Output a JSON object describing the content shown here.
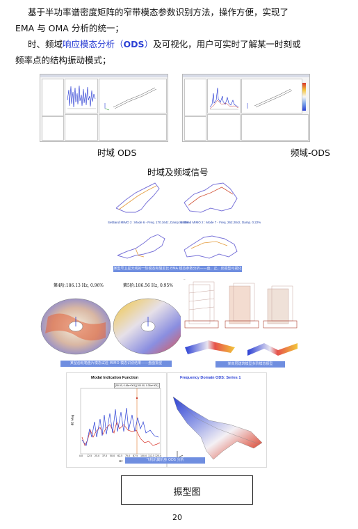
{
  "paragraphs": {
    "p1_line1": "基于半功率谱密度矩阵的窄带模态参数识别方法，操作方便，实现了",
    "p1_line2": "EMA 与 OMA 分析的统一；",
    "p2_prefix": "时、频域",
    "p2_highlight": "响应模态分析",
    "p2_open": "（",
    "p2_ods": "ODS",
    "p2_close": "）",
    "p2_rest": "及可视化，用户可实时了解某一时刻或",
    "p2_line2": "频率点的结构振动模式；"
  },
  "captions": {
    "time_ods": "时域 ODS",
    "freq_ods": "频域-ODS",
    "section_title": "时域及频域信号",
    "mode_shape": "振型图"
  },
  "figures": {
    "mode6_label": "SetBand MIMO 2 : Mode 6 - Freq. 170.164z, Damp. 0.10%",
    "mode7_label": "SetBand MIMO 2 : Mode 7 - Freq. 262.284z, Damp. 0.22%",
    "antenna_band": "某型号卫星天线的一阶模态和阻尼比 EMA 模态参数分析——盘、正、反振型可视化",
    "disk_mode4": "第4阶:186.13 Hz, 0.96%",
    "disk_mode5": "第5阶:186.56 Hz, 0.95%",
    "disk_band": "某型齿轮箱盘片模态试验 MIMO 模态识别结果——盘面振型",
    "building_band": "某高层建筑模型多阶模态振型",
    "mif_title": "Modal Indication Function",
    "mif_ylabel": "dB Mag",
    "mif_xlabel": "Hz",
    "mif_legend": "[50.00, 0.45e+001] [100.00, 0.35e+001]",
    "mif_xticks": [
      "0.0",
      "12.5",
      "25.0",
      "37.5",
      "50.0",
      "62.5",
      "75.0",
      "87.5",
      "100.0",
      "112.5",
      "125.0"
    ],
    "fd_title": "Frequency Domain ODS: Series 1",
    "plane_band": "飞机机翼机身 ODS 分析"
  },
  "page_number": "20"
}
